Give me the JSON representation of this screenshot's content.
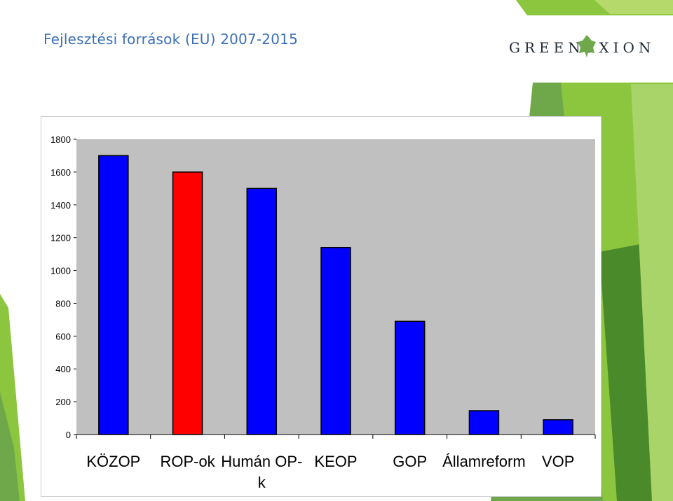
{
  "title": "Fejlesztési források (EU) 2007-2015",
  "logo": {
    "text": "GREENEXION",
    "icon": "leaf-icon"
  },
  "theme": {
    "title_color": "#3b6fb6",
    "accent_green": "#7ab648",
    "dark_green": "#4a8a2a"
  },
  "chart_data": {
    "type": "bar",
    "categories": [
      "KÖZOP",
      "ROP-ok",
      "Humán OP-k",
      "KEOP",
      "GOP",
      "Államreform",
      "VOP"
    ],
    "category_lines": [
      [
        "KÖZOP"
      ],
      [
        "ROP-ok"
      ],
      [
        "Humán OP-",
        "k"
      ],
      [
        "KEOP"
      ],
      [
        "GOP"
      ],
      [
        "Államreform"
      ],
      [
        "VOP"
      ]
    ],
    "values": [
      1700,
      1600,
      1500,
      1140,
      690,
      145,
      90
    ],
    "colors": [
      "#0000ff",
      "#ff0000",
      "#0000ff",
      "#0000ff",
      "#0000ff",
      "#0000ff",
      "#0000ff"
    ],
    "yticks": [
      "0",
      "200",
      "400",
      "600",
      "800",
      "1000",
      "1200",
      "1400",
      "1600",
      "1800"
    ],
    "ylim": [
      0,
      1800
    ],
    "plot_background": "#c0c0c0",
    "grid": false,
    "legend": "none"
  }
}
